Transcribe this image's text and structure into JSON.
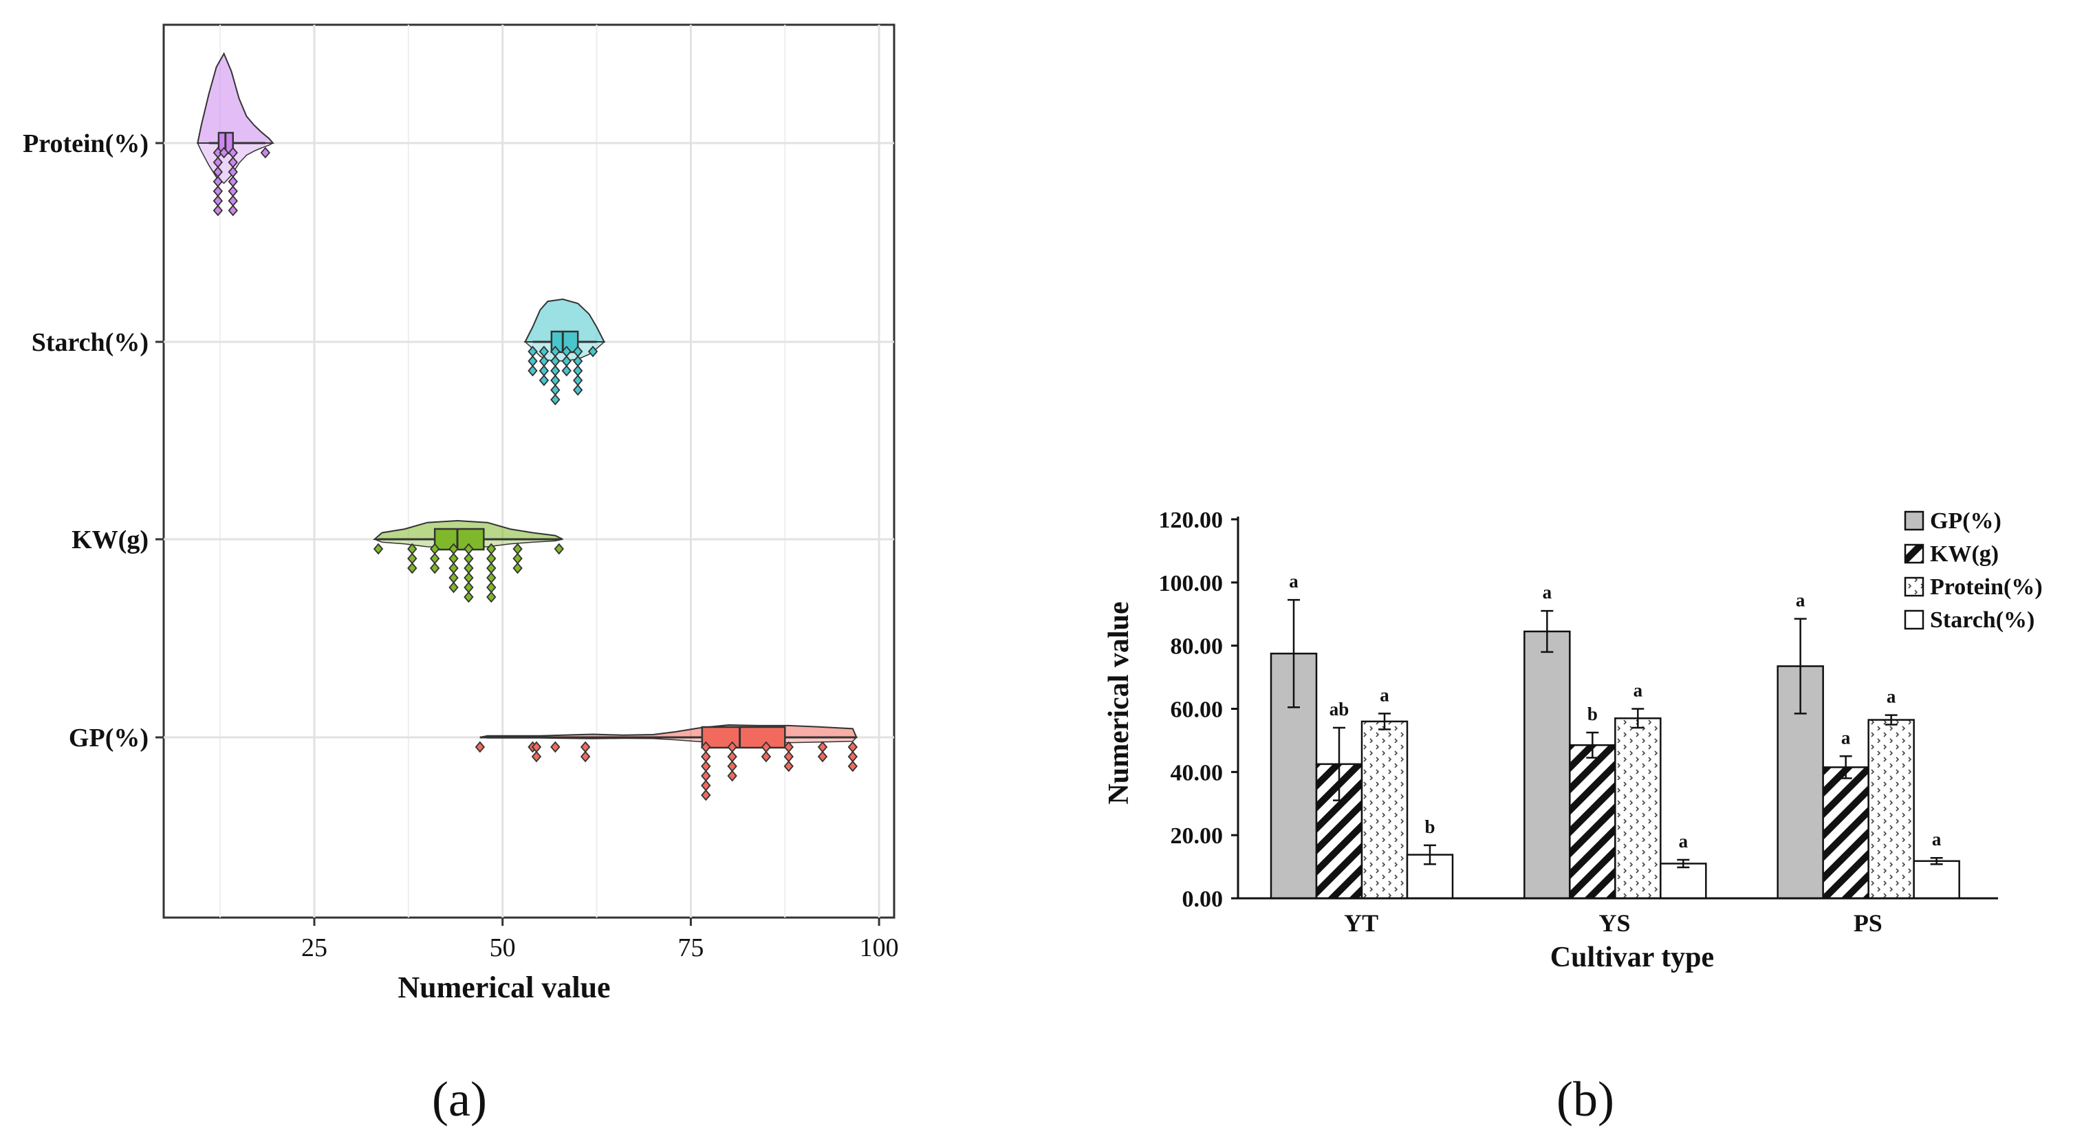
{
  "chart_data": [
    {
      "panel_label": "(a)",
      "type": "violin-raincloud",
      "xlabel": "Numerical value",
      "xlim": [
        5,
        102
      ],
      "xticks": [
        25,
        50,
        75,
        100
      ],
      "colors": {
        "Protein(%)": "#cc88ee",
        "Starch(%)": "#49c6cc",
        "KW(g)": "#7fb82a",
        "GP(%)": "#f26a5e"
      },
      "series": [
        {
          "name": "Protein(%)",
          "box": {
            "q1": 12.3,
            "median": 13.2,
            "q3": 14.2,
            "min": 11.0,
            "max": 18.5
          },
          "density": [
            [
              9.5,
              0
            ],
            [
              10,
              0.2
            ],
            [
              11,
              0.55
            ],
            [
              12,
              0.85
            ],
            [
              13,
              1.0
            ],
            [
              14,
              0.8
            ],
            [
              15,
              0.5
            ],
            [
              16,
              0.3
            ],
            [
              17,
              0.2
            ],
            [
              18,
              0.12
            ],
            [
              19,
              0.05
            ],
            [
              19.5,
              0
            ]
          ],
          "points": [
            12.2,
            12.2,
            12.2,
            12.2,
            12.2,
            12.2,
            12.2,
            13.0,
            14.2,
            14.2,
            14.2,
            14.2,
            14.2,
            14.2,
            14.2,
            18.5
          ]
        },
        {
          "name": "Starch(%)",
          "box": {
            "q1": 56.5,
            "median": 58.0,
            "q3": 60.0,
            "min": 54.0,
            "max": 62.5
          },
          "density": [
            [
              53,
              0
            ],
            [
              54,
              0.35
            ],
            [
              55,
              0.75
            ],
            [
              56,
              0.95
            ],
            [
              58,
              1.0
            ],
            [
              60,
              0.9
            ],
            [
              61.5,
              0.65
            ],
            [
              62.5,
              0.35
            ],
            [
              63.5,
              0
            ]
          ],
          "points": [
            54.0,
            54.0,
            54.0,
            55.5,
            55.5,
            55.5,
            55.5,
            57.0,
            57.0,
            57.0,
            57.0,
            57.0,
            57.0,
            58.5,
            58.5,
            58.5,
            60.0,
            60.0,
            60.0,
            60.0,
            60.0,
            62.0
          ]
        },
        {
          "name": "KW(g)",
          "box": {
            "q1": 41.0,
            "median": 44.0,
            "q3": 47.5,
            "min": 33.5,
            "max": 57.5
          },
          "density": [
            [
              33,
              0
            ],
            [
              34,
              0.35
            ],
            [
              37,
              0.55
            ],
            [
              40,
              0.9
            ],
            [
              44,
              1.0
            ],
            [
              48,
              0.9
            ],
            [
              51,
              0.55
            ],
            [
              54,
              0.35
            ],
            [
              57,
              0.2
            ],
            [
              58,
              0
            ]
          ],
          "points": [
            33.5,
            38.0,
            38.0,
            38.0,
            41.0,
            41.0,
            41.0,
            43.5,
            43.5,
            43.5,
            43.5,
            43.5,
            45.5,
            45.5,
            45.5,
            45.5,
            45.5,
            45.5,
            48.5,
            48.5,
            48.5,
            48.5,
            48.5,
            48.5,
            52.0,
            52.0,
            52.0,
            57.5
          ]
        },
        {
          "name": "GP(%)",
          "box": {
            "q1": 76.5,
            "median": 81.5,
            "q3": 87.5,
            "min": 47.0,
            "max": 97.0
          },
          "density": [
            [
              47,
              0
            ],
            [
              48,
              0.12
            ],
            [
              55,
              0.12
            ],
            [
              58,
              0.18
            ],
            [
              62,
              0.25
            ],
            [
              66,
              0.18
            ],
            [
              70,
              0.22
            ],
            [
              73,
              0.45
            ],
            [
              76,
              0.75
            ],
            [
              80,
              1.0
            ],
            [
              84,
              0.95
            ],
            [
              88,
              0.95
            ],
            [
              92,
              0.85
            ],
            [
              96.5,
              0.7
            ],
            [
              97,
              0
            ]
          ],
          "points": [
            47.0,
            54.0,
            54.5,
            54.5,
            57.0,
            61.0,
            61.0,
            77.0,
            77.0,
            77.0,
            77.0,
            77.0,
            77.0,
            80.5,
            80.5,
            80.5,
            80.5,
            85.0,
            85.0,
            88.0,
            88.0,
            88.0,
            92.5,
            92.5,
            96.5,
            96.5,
            96.5
          ]
        }
      ]
    },
    {
      "panel_label": "(b)",
      "type": "bar",
      "xlabel": "Cultivar type",
      "ylabel": "Numerical value",
      "ylim": [
        0,
        120
      ],
      "yticks": [
        "0.00",
        "20.00",
        "40.00",
        "60.00",
        "80.00",
        "100.00",
        "120.00"
      ],
      "categories": [
        "YT",
        "YS",
        "PS"
      ],
      "series": [
        {
          "name": "GP(%)",
          "pattern": "gray",
          "values": [
            77.5,
            84.5,
            73.5
          ],
          "errors": [
            17.0,
            6.5,
            15.0
          ],
          "letters": [
            "a",
            "a",
            "a"
          ]
        },
        {
          "name": "KW(g)",
          "pattern": "hatch",
          "values": [
            42.5,
            48.5,
            41.5
          ],
          "errors": [
            11.5,
            4.0,
            3.5
          ],
          "letters": [
            "ab",
            "b",
            "a"
          ]
        },
        {
          "name": "Protein(%)",
          "pattern": "dots",
          "values": [
            56.0,
            57.0,
            56.5
          ],
          "errors": [
            2.5,
            3.0,
            1.5
          ],
          "letters": [
            "a",
            "a",
            "a"
          ]
        },
        {
          "name": "Starch(%)",
          "pattern": "white",
          "values": [
            13.8,
            11.0,
            11.8
          ],
          "errors": [
            3.0,
            1.2,
            1.0
          ],
          "letters": [
            "b",
            "a",
            "a"
          ]
        }
      ]
    }
  ]
}
